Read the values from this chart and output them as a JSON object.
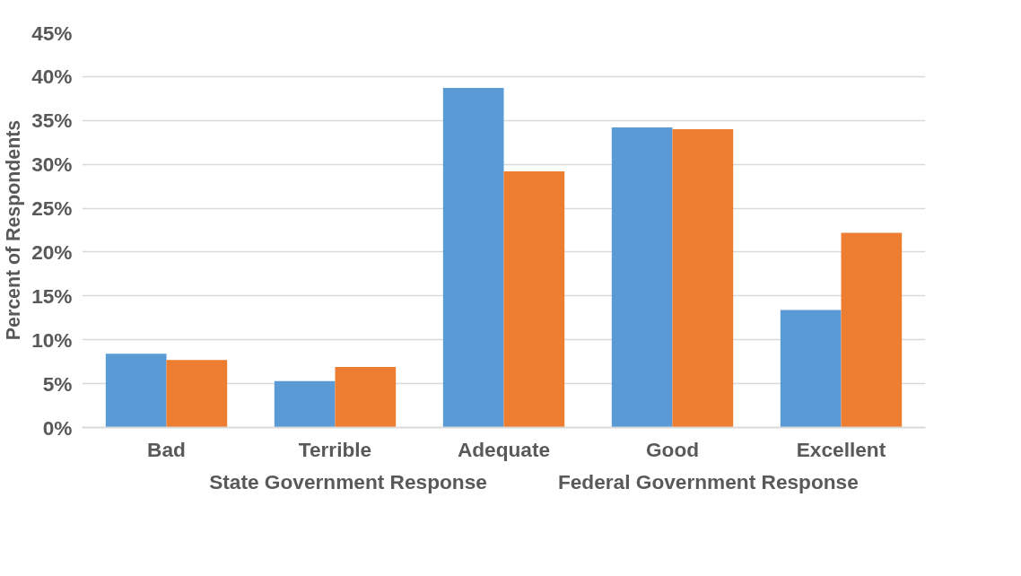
{
  "chart_data": {
    "type": "bar",
    "ylabel": "Percent of Respondents",
    "categories": [
      "Bad",
      "Terrible",
      "Adequate",
      "Good",
      "Excellent"
    ],
    "series": [
      {
        "name": "State Government Response",
        "color": "#5b9bd5",
        "values": [
          8.4,
          5.3,
          38.7,
          34.2,
          13.4
        ]
      },
      {
        "name": "Federal Government Response",
        "color": "#ed7d31",
        "values": [
          7.7,
          6.9,
          29.2,
          34.0,
          22.2
        ]
      }
    ],
    "ylim": [
      0,
      45
    ],
    "yticks": [
      {
        "value": 0,
        "label": "0%"
      },
      {
        "value": 5,
        "label": "5%"
      },
      {
        "value": 10,
        "label": "10%"
      },
      {
        "value": 15,
        "label": "15%"
      },
      {
        "value": 20,
        "label": "20%"
      },
      {
        "value": 25,
        "label": "25%"
      },
      {
        "value": 30,
        "label": "30%"
      },
      {
        "value": 35,
        "label": "35%"
      },
      {
        "value": 40,
        "label": "40%"
      },
      {
        "value": 45,
        "label": "45%"
      }
    ],
    "grid": "y",
    "legend": "bottom"
  }
}
